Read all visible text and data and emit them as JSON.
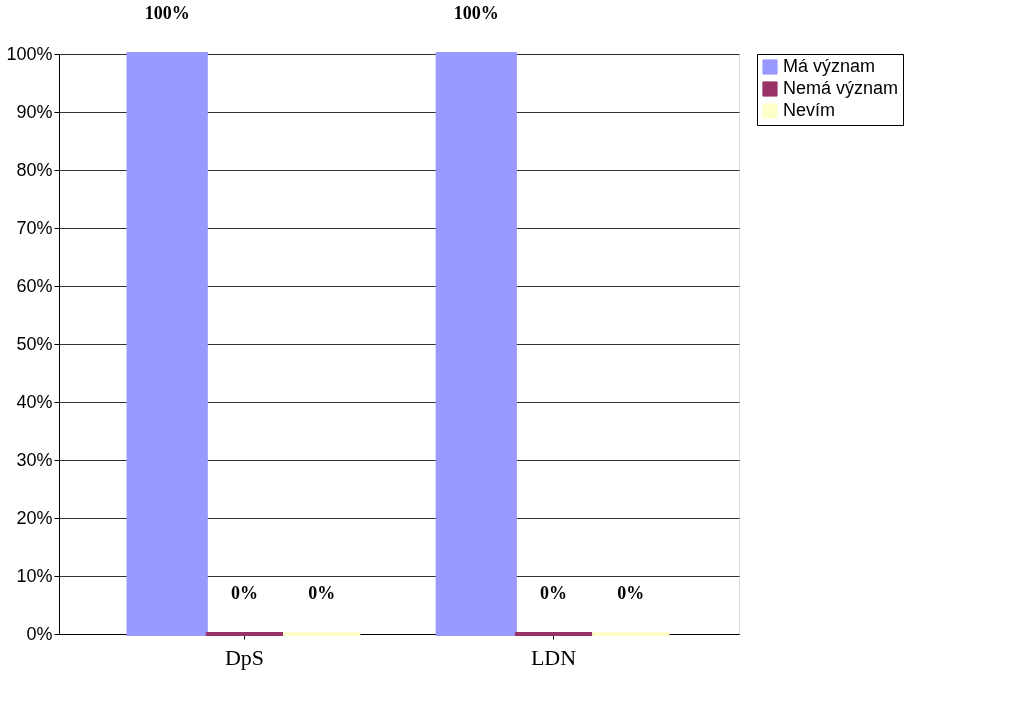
{
  "chart_data": {
    "type": "bar",
    "categories": [
      "DpS",
      "LDN"
    ],
    "series": [
      {
        "name": "Má význam",
        "color": "#9999ff",
        "values": [
          100,
          100
        ],
        "value_labels": [
          "100%",
          "100%"
        ]
      },
      {
        "name": "Nemá význam",
        "color": "#993366",
        "values": [
          0,
          0
        ],
        "value_labels": [
          "0%",
          "0%"
        ]
      },
      {
        "name": "Nevím",
        "color": "#ffffcc",
        "values": [
          0,
          0
        ],
        "value_labels": [
          "0%",
          "0%"
        ]
      }
    ],
    "ylim": [
      0,
      100
    ],
    "yticks": [
      {
        "value": 0,
        "label": "0%"
      },
      {
        "value": 10,
        "label": "10%"
      },
      {
        "value": 20,
        "label": "20%"
      },
      {
        "value": 30,
        "label": "30%"
      },
      {
        "value": 40,
        "label": "40%"
      },
      {
        "value": 50,
        "label": "50%"
      },
      {
        "value": 60,
        "label": "60%"
      },
      {
        "value": 70,
        "label": "70%"
      },
      {
        "value": 80,
        "label": "80%"
      },
      {
        "value": 90,
        "label": "90%"
      },
      {
        "value": 100,
        "label": "100%"
      }
    ],
    "grid": "y",
    "legend": "right"
  }
}
